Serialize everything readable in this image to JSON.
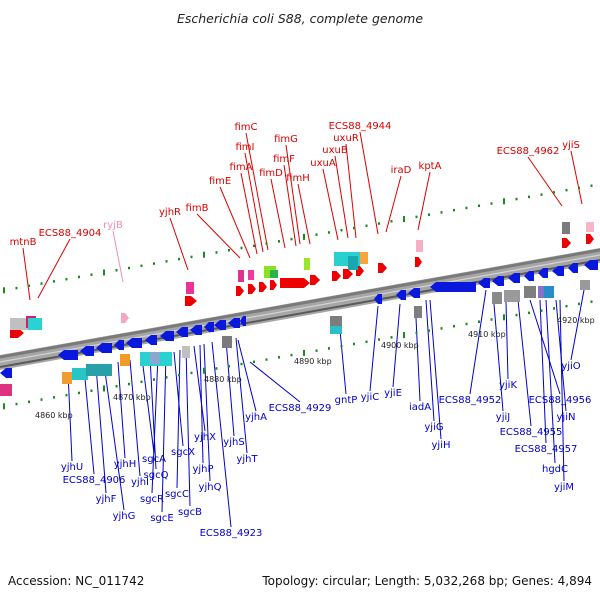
{
  "title": "Escherichia coli S88, complete genome",
  "footer": {
    "accession": "Accession: NC_011742",
    "summary": "Topology: circular; Length: 5,032,268 bp; Genes: 4,894"
  },
  "colors": {
    "forward_label": "#dd0000",
    "reverse_label": "#0000cc",
    "pseudo_label": "#f08fb0",
    "forward_gene": "#ee0000",
    "reverse_gene": "#0a18dd",
    "backbone": "#7a7a7a",
    "tick": "#1a8a1a"
  },
  "scale_labels": [
    "4860 kbp",
    "4870 kbp",
    "4880 kbp",
    "4890 kbp",
    "4900 kbp",
    "4910 kbp",
    "4920 kbp"
  ],
  "forward_labels": [
    "mtnB",
    "ECS88_4904",
    "ryjB",
    "yjhR",
    "fimB",
    "fimE",
    "fimA",
    "fimI",
    "fimC",
    "fimD",
    "fimF",
    "fimG",
    "fimH",
    "uxuA",
    "uxuB",
    "uxuR",
    "ECS88_4944",
    "iraD",
    "kptA",
    "ECS88_4962",
    "yjiS"
  ],
  "reverse_labels": [
    "yjhU",
    "ECS88_4906",
    "yjhF",
    "yjhG",
    "yjhH",
    "yjhI",
    "sgcA",
    "sgcQ",
    "sgcR",
    "sgcE",
    "sgcX",
    "sgcC",
    "sgcB",
    "yjhX",
    "yjhP",
    "yjhQ",
    "ECS88_4923",
    "yjhS",
    "yjhT",
    "yjhA",
    "ECS88_4929",
    "gntP",
    "yjiC",
    "yjiE",
    "iadA",
    "yjiG",
    "yjiH",
    "ECS88_4952",
    "yjiJ",
    "yjiK",
    "ECS88_4955",
    "ECS88_4956",
    "ECS88_4957",
    "hgdC",
    "yjiN",
    "yjiM",
    "yjiO"
  ]
}
